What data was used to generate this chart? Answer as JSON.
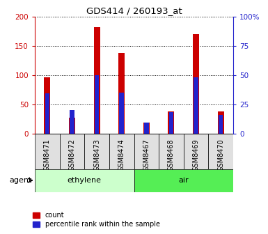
{
  "title": "GDS414 / 260193_at",
  "samples": [
    "GSM8471",
    "GSM8472",
    "GSM8473",
    "GSM8474",
    "GSM8467",
    "GSM8468",
    "GSM8469",
    "GSM8470"
  ],
  "count_values": [
    96,
    27,
    182,
    138,
    19,
    37,
    170,
    37
  ],
  "percentile_values": [
    34,
    20,
    50,
    35,
    9,
    18,
    48,
    16
  ],
  "groups": [
    {
      "label": "ethylene",
      "start": 0,
      "end": 4,
      "color": "#ccffcc"
    },
    {
      "label": "air",
      "start": 4,
      "end": 8,
      "color": "#55ee55"
    }
  ],
  "ylim_left": [
    0,
    200
  ],
  "ylim_right": [
    0,
    100
  ],
  "yticks_left": [
    0,
    50,
    100,
    150,
    200
  ],
  "yticks_right": [
    0,
    25,
    50,
    75,
    100
  ],
  "yticklabels_left": [
    "0",
    "50",
    "100",
    "150",
    "200"
  ],
  "yticklabels_right": [
    "0",
    "25",
    "50",
    "75",
    "100%"
  ],
  "bar_color_red": "#cc0000",
  "bar_color_blue": "#2222cc",
  "red_bar_width": 0.25,
  "blue_bar_width": 0.18,
  "plot_bg_color": "#ffffff",
  "left_tick_color": "#cc0000",
  "right_tick_color": "#2222cc",
  "legend_items": [
    "count",
    "percentile rank within the sample"
  ],
  "scale_factor": 2.0,
  "agent_label": "agent"
}
